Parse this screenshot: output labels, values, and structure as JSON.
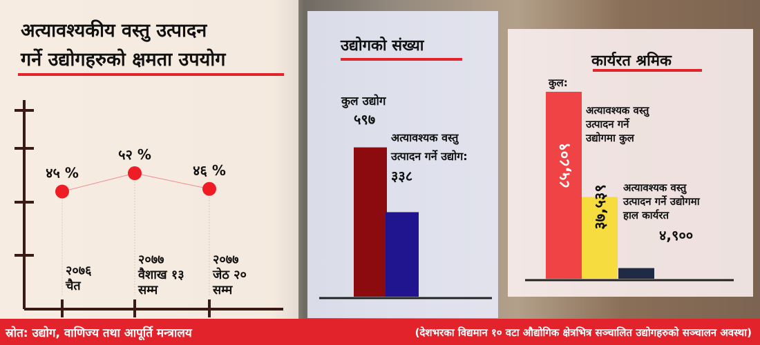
{
  "left_panel": {
    "title_line1": "अत्यावश्यकीय वस्तु उत्पादन",
    "title_line2": "गर्ने उद्योगहरुको क्षमता उपयोग"
  },
  "mid_panel": {
    "title": "उद्योगको संख्या"
  },
  "right_panel": {
    "title": "कार्यरत श्रमिक"
  },
  "footer": {
    "source": "स्रोत: उद्योग, वाणिज्य तथा आपूर्ति मन्त्रालय",
    "note": "(देशभरका विद्यमान १० वटा औद्योगिक क्षेत्रभित्र सञ्चालित उद्योगहरुको सञ्चालन अवस्था)"
  },
  "colors": {
    "accent": "#e0242a",
    "dot": "#ee1c24",
    "bar_total_industry": "#8b0b0f",
    "bar_essential_industry": "#21148f",
    "bar_total_workers": "#ef4346",
    "bar_essential_workers": "#f6dc3e",
    "bar_current_workers": "#1f2a44",
    "axis": "#3a1a14"
  },
  "chart_data": [
    {
      "type": "line",
      "categories": [
        [
          "२०७६",
          "चैत"
        ],
        [
          "२०७७",
          "वैशाख १३",
          "सम्म"
        ],
        [
          "२०७७",
          "जेठ २०",
          "सम्म"
        ]
      ],
      "values": [
        45,
        52,
        46
      ],
      "value_labels": [
        "४५ %",
        "५२ %",
        "४६ %"
      ],
      "ylim": [
        0,
        80
      ]
    },
    {
      "type": "bar",
      "categories": [
        "कुल उद्योग",
        "अत्यावश्यक वस्तु उत्पादन गर्ने उद्योग:"
      ],
      "values": [
        597,
        338
      ],
      "value_labels": [
        "५९७",
        "३३८"
      ],
      "ylim": [
        0,
        800
      ]
    },
    {
      "type": "bar",
      "categories": [
        "कुल:",
        "अत्यावश्यक वस्तु उत्पादन गर्ने उद्योगमा कुल",
        "अत्यावश्यक वस्तु उत्पादन गर्ने उद्योगमा हाल कार्यरत"
      ],
      "values": [
        85809,
        37539,
        4900
      ],
      "value_labels": [
        "८५,८०९",
        "३७,५३९",
        "४,९००"
      ],
      "ylim": [
        0,
        95000
      ]
    }
  ]
}
